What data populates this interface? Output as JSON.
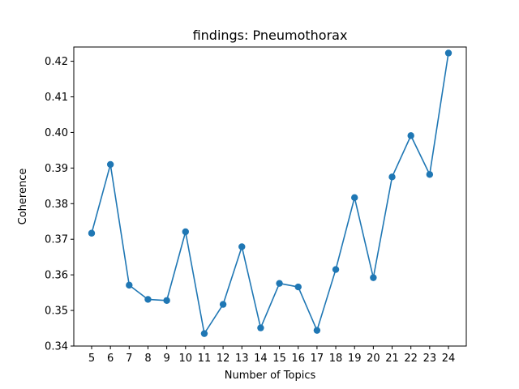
{
  "chart_data": {
    "type": "line",
    "title": "findings: Pneumothorax",
    "xlabel": "Number of Topics",
    "ylabel": "Coherence",
    "x": [
      5,
      6,
      7,
      8,
      9,
      10,
      11,
      12,
      13,
      14,
      15,
      16,
      17,
      18,
      19,
      20,
      21,
      22,
      23,
      24
    ],
    "series": [
      {
        "values": [
          0.3717,
          0.391,
          0.3571,
          0.3531,
          0.3528,
          0.3721,
          0.3435,
          0.3517,
          0.3679,
          0.3451,
          0.3576,
          0.3566,
          0.3444,
          0.3615,
          0.3817,
          0.3592,
          0.3875,
          0.3991,
          0.3882,
          0.4223
        ],
        "color": "#1f77b4",
        "marker": "circle"
      }
    ],
    "xticks": [
      "5",
      "6",
      "7",
      "8",
      "9",
      "10",
      "11",
      "12",
      "13",
      "14",
      "15",
      "16",
      "17",
      "18",
      "19",
      "20",
      "21",
      "22",
      "23",
      "24"
    ],
    "yticks": [
      0.34,
      0.35,
      0.36,
      0.37,
      0.38,
      0.39,
      0.4,
      0.41,
      0.42
    ],
    "ytick_labels": [
      "0.34",
      "0.35",
      "0.36",
      "0.37",
      "0.38",
      "0.39",
      "0.40",
      "0.41",
      "0.42"
    ],
    "xlim": [
      4.05,
      24.95
    ],
    "ylim": [
      0.34,
      0.424
    ],
    "grid": false,
    "legend": "none"
  }
}
